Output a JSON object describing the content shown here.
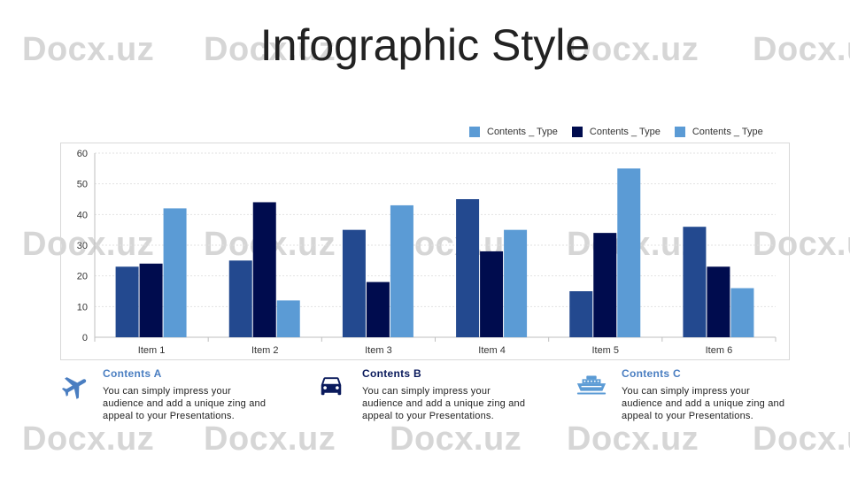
{
  "title": "Infographic Style",
  "watermark": "Docx.uz",
  "colors": {
    "series1": "#23498f",
    "series2": "#000c4e",
    "series3": "#5b9bd5",
    "title_a": "#4a7ec1",
    "title_b": "#0a1a5c",
    "title_c": "#4a7ec1"
  },
  "chart_data": {
    "type": "bar",
    "categories": [
      "Item 1",
      "Item 2",
      "Item 3",
      "Item 4",
      "Item 5",
      "Item 6"
    ],
    "series": [
      {
        "name": "Contents _ Type",
        "color": "#23498f",
        "values": [
          23,
          25,
          35,
          45,
          15,
          36
        ]
      },
      {
        "name": "Contents _ Type",
        "color": "#000c4e",
        "values": [
          24,
          44,
          18,
          28,
          34,
          23
        ]
      },
      {
        "name": "Contents _ Type",
        "color": "#5b9bd5",
        "values": [
          42,
          12,
          43,
          35,
          55,
          16
        ]
      }
    ],
    "ylim": [
      0,
      60
    ],
    "yticks": [
      0,
      10,
      20,
      30,
      40,
      50,
      60
    ],
    "grid": true,
    "legend_position": "top-right",
    "xlabel": "",
    "ylabel": ""
  },
  "info": [
    {
      "title": "Contents A",
      "text": "You can simply impress your audience and add a unique zing and appeal to your Presentations.",
      "icon": "airplane-icon"
    },
    {
      "title": "Contents B",
      "text": "You can simply impress your audience and add a unique zing and appeal to your Presentations.",
      "icon": "car-icon"
    },
    {
      "title": "Contents C",
      "text": "You can simply impress your audience and add a unique zing and appeal to your Presentations.",
      "icon": "ship-icon"
    }
  ]
}
